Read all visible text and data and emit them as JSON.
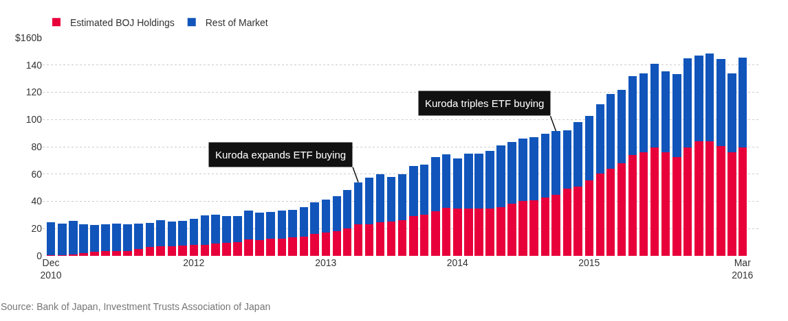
{
  "chart_data": {
    "type": "bar",
    "stacked": true,
    "x": [
      "2010-12",
      "2011-01",
      "2011-02",
      "2011-03",
      "2011-04",
      "2011-05",
      "2011-06",
      "2011-07",
      "2011-08",
      "2011-09",
      "2011-10",
      "2011-11",
      "2011-12",
      "2012-01",
      "2012-02",
      "2012-03",
      "2012-04",
      "2012-05",
      "2012-06",
      "2012-07",
      "2012-08",
      "2012-09",
      "2012-10",
      "2012-11",
      "2012-12",
      "2013-01",
      "2013-02",
      "2013-03",
      "2013-04",
      "2013-05",
      "2013-06",
      "2013-07",
      "2013-08",
      "2013-09",
      "2013-10",
      "2013-11",
      "2013-12",
      "2014-01",
      "2014-02",
      "2014-03",
      "2014-04",
      "2014-05",
      "2014-06",
      "2014-07",
      "2014-08",
      "2014-09",
      "2014-10",
      "2014-11",
      "2014-12",
      "2015-01",
      "2015-02",
      "2015-03",
      "2015-04",
      "2015-05",
      "2015-06",
      "2015-07",
      "2015-08",
      "2015-09",
      "2015-10",
      "2015-11",
      "2015-12",
      "2016-01",
      "2016-02",
      "2016-03"
    ],
    "series": [
      {
        "name": "Estimated BOJ Holdings",
        "color": "#e8003b",
        "values": [
          0.3,
          0.5,
          1,
          2.2,
          2.8,
          3.4,
          3.4,
          3.4,
          4.8,
          6.5,
          6.9,
          6.9,
          7.4,
          7.9,
          8.3,
          9.1,
          9.7,
          10,
          12,
          11.7,
          12.6,
          12.6,
          13.4,
          14,
          16,
          17.2,
          18.3,
          20,
          22.9,
          22.9,
          24.7,
          25.2,
          26.4,
          29.3,
          30.3,
          32.9,
          35.3,
          34.7,
          34.7,
          34.7,
          34.7,
          35.9,
          38.4,
          40.2,
          41,
          42.8,
          44.8,
          49.3,
          51,
          55.2,
          60.3,
          64,
          67.8,
          73.8,
          76,
          79.5,
          76,
          72.4,
          79.5,
          84.1,
          84.1,
          80.7,
          76,
          79.3
        ]
      },
      {
        "name": "Rest of Market",
        "color": "#1155bb",
        "values": [
          24.4,
          23.3,
          24.5,
          21.1,
          19.6,
          19.5,
          20.4,
          19.9,
          19,
          17.8,
          19.5,
          18.1,
          18.1,
          19.3,
          21.5,
          21.1,
          19.6,
          19.3,
          21.3,
          20.2,
          19.8,
          20.7,
          20.4,
          21.9,
          23,
          24.2,
          25.3,
          28.3,
          31.1,
          34.5,
          35,
          32.7,
          33.3,
          36.7,
          36.6,
          39.5,
          39.2,
          37,
          40.3,
          40.3,
          42.5,
          45.1,
          45.2,
          46,
          46.1,
          46.9,
          46.6,
          42.9,
          46.9,
          47.6,
          50.9,
          54.6,
          53.9,
          58.2,
          57.8,
          61.5,
          59.3,
          60.9,
          65.5,
          62.9,
          64.5,
          63.8,
          57.6,
          66
        ]
      }
    ],
    "xlim": [
      "2010-11-08",
      "2016-04-20"
    ],
    "xticks": [
      {
        "value": "2010-12",
        "label": "Dec\n2010"
      },
      {
        "value": "2012-01",
        "label": "2012"
      },
      {
        "value": "2013-01",
        "label": "2013"
      },
      {
        "value": "2014-01",
        "label": "2014"
      },
      {
        "value": "2015-01",
        "label": "2015"
      },
      {
        "value": "2016-03",
        "label": "Mar\n2016"
      }
    ],
    "ylim": [
      0,
      160
    ],
    "yticks": [
      0,
      20,
      40,
      60,
      80,
      100,
      120,
      140,
      {
        "value": 160,
        "label": "$160b"
      }
    ],
    "grid": "y",
    "legend": "top left",
    "annotations": [
      {
        "text": "Kuroda expands ETF buying",
        "x": "2013-04",
        "y": 54
      },
      {
        "text": "Kuroda triples ETF buying",
        "x": "2014-10",
        "y": 91.4
      },
      "Source: Bank of Japan, Investment Trusts Association of Japan"
    ]
  }
}
